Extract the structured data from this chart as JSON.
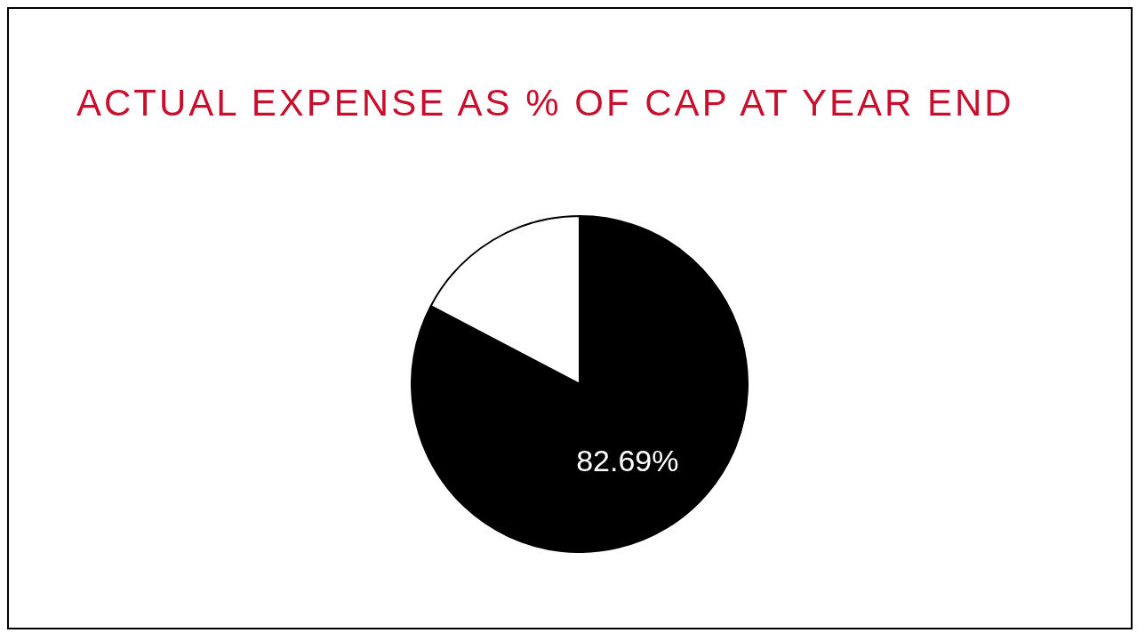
{
  "chart_data": {
    "type": "pie",
    "title": "ACTUAL EXPENSE AS % OF CAP AT YEAR END",
    "categories": [
      null,
      null
    ],
    "values": [
      82.69,
      17.31
    ],
    "colors": [
      "#000000",
      "#ffffff"
    ],
    "value_labels": [
      "82.69%",
      null
    ],
    "legend": false
  }
}
